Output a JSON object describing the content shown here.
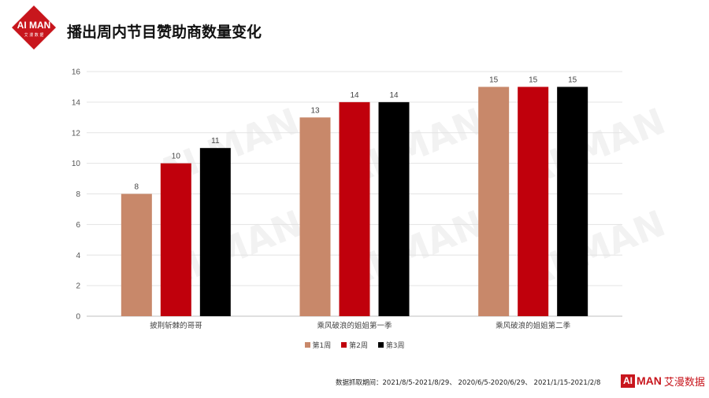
{
  "header": {
    "title": "播出周内节目赞助商数量变化",
    "logo_text": "AI MAN",
    "logo_subtext": "艾 漫 数 据"
  },
  "watermark": {
    "text": "AI MAN",
    "subtext": "数 据"
  },
  "chart_data": {
    "type": "bar",
    "categories": [
      "披荆斩棘的哥哥",
      "乘风破浪的姐姐第一季",
      "乘风破浪的姐姐第二季"
    ],
    "series": [
      {
        "name": "第1周",
        "color": "#c8886a",
        "values": [
          8,
          13,
          15
        ]
      },
      {
        "name": "第2周",
        "color": "#c0000c",
        "values": [
          10,
          14,
          15
        ]
      },
      {
        "name": "第3周",
        "color": "#000000",
        "values": [
          11,
          14,
          15
        ]
      }
    ],
    "ylim": [
      0,
      16
    ],
    "yticks": [
      0,
      2,
      4,
      6,
      8,
      10,
      12,
      14,
      16
    ],
    "grid": true,
    "legend": "bottom-center"
  },
  "footer": {
    "note": "数据抓取期间：2021/8/5-2021/8/29、 2020/6/5-2020/6/29、 2021/1/15-2021/2/8",
    "logo_box": "AI",
    "logo_man": "MAN",
    "logo_cn": "艾漫数据"
  }
}
